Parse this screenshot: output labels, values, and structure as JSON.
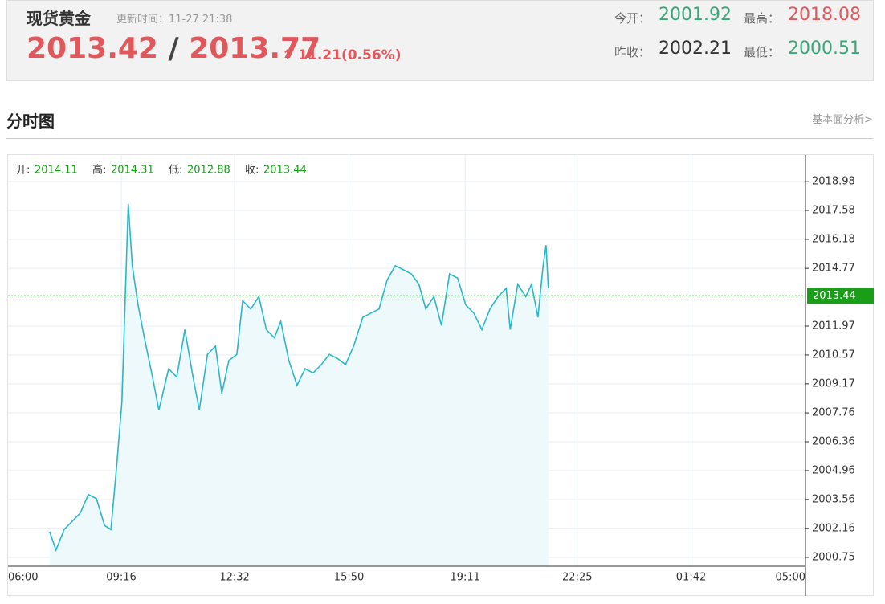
{
  "header": {
    "title": "现货黄金",
    "update_time": "更新时间：11-27 21:38",
    "bid": 2013.42,
    "ask": 2013.77,
    "change": "11.21(0.56%)",
    "stats": [
      {
        "label": "今开：",
        "value": 2001.92
      },
      {
        "label": "最高：",
        "value": 2018.08
      },
      {
        "label": "昨收：",
        "value": 2002.21
      },
      {
        "label": "最低：",
        "value": 2000.51
      }
    ]
  },
  "section": {
    "title": "分时图",
    "link": "基本面分析>"
  },
  "chart_data": {
    "type": "line",
    "info": [
      {
        "label": "开:",
        "value": 2014.11
      },
      {
        "label": "高:",
        "value": 2014.31
      },
      {
        "label": "低:",
        "value": 2012.88
      },
      {
        "label": "收:",
        "value": 2013.44
      }
    ],
    "last_value": 2013.44,
    "x": [
      "07:12",
      "07:23",
      "07:37",
      "07:51",
      "08:05",
      "08:19",
      "08:33",
      "08:47",
      "08:58",
      "09:08",
      "09:17",
      "09:26",
      "09:28",
      "09:35",
      "09:45",
      "09:56",
      "10:10",
      "10:21",
      "10:38",
      "10:52",
      "11:06",
      "11:20",
      "11:31",
      "11:45",
      "11:59",
      "12:10",
      "12:22",
      "12:36",
      "12:46",
      "13:00",
      "13:14",
      "13:27",
      "13:41",
      "13:52",
      "14:06",
      "14:20",
      "14:34",
      "14:48",
      "15:02",
      "15:16",
      "15:30",
      "15:44",
      "15:58",
      "16:14",
      "16:28",
      "16:42",
      "16:56",
      "17:10",
      "17:24",
      "17:38",
      "17:51",
      "18:03",
      "18:17",
      "18:30",
      "18:44",
      "18:58",
      "19:12",
      "19:26",
      "19:40",
      "19:54",
      "20:08",
      "20:22",
      "20:29",
      "20:42",
      "20:56",
      "21:06",
      "21:17",
      "21:26",
      "21:31",
      "21:35"
    ],
    "series": [
      {
        "color": "#2bb7c9",
        "values": [
          2002.0,
          2001.1,
          2002.1,
          2002.5,
          2002.9,
          2003.8,
          2003.6,
          2002.3,
          2002.1,
          2005.2,
          2008.3,
          2016.1,
          2017.9,
          2014.9,
          2013.0,
          2011.4,
          2009.5,
          2007.9,
          2009.9,
          2009.5,
          2011.8,
          2009.5,
          2007.9,
          2010.6,
          2011.0,
          2008.7,
          2010.3,
          2010.6,
          2013.2,
          2012.8,
          2013.4,
          2011.8,
          2011.4,
          2012.2,
          2010.3,
          2009.1,
          2009.9,
          2009.7,
          2010.1,
          2010.6,
          2010.4,
          2010.1,
          2011.0,
          2012.4,
          2012.6,
          2012.8,
          2014.2,
          2014.9,
          2014.7,
          2014.5,
          2014.0,
          2012.8,
          2013.4,
          2012.0,
          2014.5,
          2014.3,
          2013.0,
          2012.6,
          2011.8,
          2012.8,
          2013.4,
          2013.8,
          2011.8,
          2014.0,
          2013.4,
          2014.0,
          2012.4,
          2014.9,
          2015.9,
          2013.8
        ]
      }
    ],
    "xlim": [
      "06:00",
      "05:00"
    ],
    "xticks": [
      "06:00",
      "09:16",
      "12:32",
      "15:50",
      "19:11",
      "22:25",
      "01:42",
      "05:00"
    ],
    "ylim": [
      2000.32,
      2020.27
    ],
    "yticks": [
      2000.75,
      2002.16,
      2003.56,
      2004.96,
      2006.36,
      2007.76,
      2009.17,
      2010.57,
      2011.97,
      2014.77,
      2016.18,
      2017.58,
      2018.98
    ],
    "grid": true
  }
}
